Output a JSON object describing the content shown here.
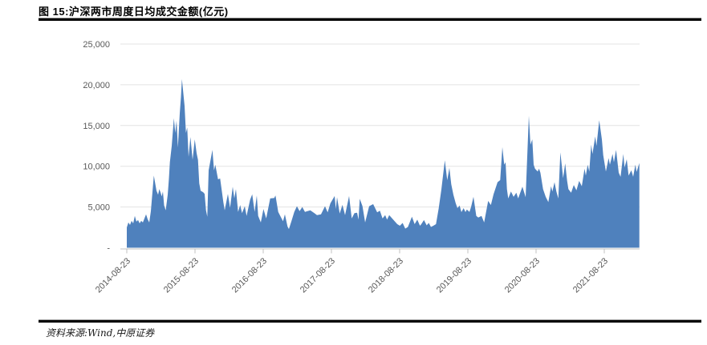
{
  "figure": {
    "title": "图 15:沪深两市周度日均成交金额(亿元)",
    "source": "资料来源:Wind,中原证券"
  },
  "colors": {
    "area_fill": "#4F81BD",
    "grid": "#E3E3E3",
    "axis": "#C0C0C0",
    "tick_label": "#595959",
    "rule": "#000000"
  },
  "chart_data": {
    "type": "area",
    "title": "沪深两市周度日均成交金额(亿元)",
    "series_name": "周度日均成交金额",
    "unit": "亿元",
    "legend": false,
    "grid": true,
    "x_axis": {
      "unit": "years since 2014-08-23 (weekly data)",
      "range": [
        0,
        7.52
      ],
      "ticks": [
        {
          "pos": 0,
          "label": "2014-08-23"
        },
        {
          "pos": 1,
          "label": "2015-08-23"
        },
        {
          "pos": 2,
          "label": "2016-08-23"
        },
        {
          "pos": 3,
          "label": "2017-08-23"
        },
        {
          "pos": 4,
          "label": "2018-08-23"
        },
        {
          "pos": 5,
          "label": "2019-08-23"
        },
        {
          "pos": 6,
          "label": "2020-08-23"
        },
        {
          "pos": 7,
          "label": "2021-08-23"
        }
      ]
    },
    "y_axis": {
      "range": [
        0,
        25000
      ],
      "ticks": [
        {
          "value": 0,
          "label": "-"
        },
        {
          "value": 5000,
          "label": "5,000"
        },
        {
          "value": 10000,
          "label": "10,000"
        },
        {
          "value": 15000,
          "label": "15,000"
        },
        {
          "value": 20000,
          "label": "20,000"
        },
        {
          "value": 25000,
          "label": "25,000"
        }
      ]
    },
    "points": [
      [
        0,
        2500
      ],
      [
        0.024,
        3100
      ],
      [
        0.047,
        2800
      ],
      [
        0.071,
        3300
      ],
      [
        0.094,
        3000
      ],
      [
        0.118,
        3900
      ],
      [
        0.141,
        3200
      ],
      [
        0.165,
        3400
      ],
      [
        0.188,
        3000
      ],
      [
        0.212,
        3300
      ],
      [
        0.235,
        3100
      ],
      [
        0.259,
        3600
      ],
      [
        0.282,
        4100
      ],
      [
        0.306,
        3500
      ],
      [
        0.329,
        3100
      ],
      [
        0.353,
        4500
      ],
      [
        0.396,
        8850
      ],
      [
        0.435,
        7000
      ],
      [
        0.459,
        6500
      ],
      [
        0.476,
        7200
      ],
      [
        0.494,
        6800
      ],
      [
        0.512,
        6300
      ],
      [
        0.529,
        6900
      ],
      [
        0.547,
        5200
      ],
      [
        0.571,
        4600
      ],
      [
        0.6,
        6500
      ],
      [
        0.618,
        8500
      ],
      [
        0.632,
        10500
      ],
      [
        0.659,
        12500
      ],
      [
        0.691,
        15900
      ],
      [
        0.709,
        14100
      ],
      [
        0.729,
        15600
      ],
      [
        0.749,
        12300
      ],
      [
        0.776,
        16500
      ],
      [
        0.794,
        18500
      ],
      [
        0.808,
        20700
      ],
      [
        0.847,
        17400
      ],
      [
        0.867,
        14100
      ],
      [
        0.886,
        14750
      ],
      [
        0.906,
        11150
      ],
      [
        0.933,
        13600
      ],
      [
        0.965,
        10800
      ],
      [
        0.996,
        13300
      ],
      [
        1.024,
        11600
      ],
      [
        1.044,
        10800
      ],
      [
        1.062,
        7900
      ],
      [
        1.082,
        7000
      ],
      [
        1.121,
        6800
      ],
      [
        1.141,
        6600
      ],
      [
        1.161,
        4600
      ],
      [
        1.18,
        3800
      ],
      [
        1.2,
        9500
      ],
      [
        1.255,
        12000
      ],
      [
        1.279,
        9500
      ],
      [
        1.298,
        10200
      ],
      [
        1.338,
        8400
      ],
      [
        1.368,
        8500
      ],
      [
        1.415,
        5600
      ],
      [
        1.435,
        4600
      ],
      [
        1.482,
        6600
      ],
      [
        1.514,
        4900
      ],
      [
        1.553,
        7500
      ],
      [
        1.576,
        6050
      ],
      [
        1.6,
        7200
      ],
      [
        1.632,
        4400
      ],
      [
        1.662,
        5250
      ],
      [
        1.69,
        4250
      ],
      [
        1.729,
        5100
      ],
      [
        1.756,
        3900
      ],
      [
        1.808,
        5900
      ],
      [
        1.839,
        6550
      ],
      [
        1.874,
        4400
      ],
      [
        1.906,
        6400
      ],
      [
        1.926,
        3900
      ],
      [
        1.965,
        3100
      ],
      [
        2.004,
        4750
      ],
      [
        2.043,
        3600
      ],
      [
        2.102,
        6050
      ],
      [
        2.161,
        6100
      ],
      [
        2.18,
        6400
      ],
      [
        2.22,
        4400
      ],
      [
        2.259,
        3750
      ],
      [
        2.291,
        3250
      ],
      [
        2.318,
        4100
      ],
      [
        2.356,
        2600
      ],
      [
        2.376,
        2300
      ],
      [
        2.415,
        3300
      ],
      [
        2.455,
        4400
      ],
      [
        2.494,
        5100
      ],
      [
        2.533,
        4500
      ],
      [
        2.573,
        5000
      ],
      [
        2.612,
        4400
      ],
      [
        2.691,
        4600
      ],
      [
        2.749,
        4250
      ],
      [
        2.788,
        4000
      ],
      [
        2.847,
        4100
      ],
      [
        2.906,
        5100
      ],
      [
        2.945,
        4350
      ],
      [
        2.985,
        5450
      ],
      [
        3.047,
        6350
      ],
      [
        3.065,
        4750
      ],
      [
        3.082,
        6200
      ],
      [
        3.121,
        4200
      ],
      [
        3.161,
        5270
      ],
      [
        3.2,
        4000
      ],
      [
        3.259,
        6350
      ],
      [
        3.298,
        3600
      ],
      [
        3.338,
        4250
      ],
      [
        3.376,
        4300
      ],
      [
        3.396,
        3450
      ],
      [
        3.415,
        6000
      ],
      [
        3.455,
        5100
      ],
      [
        3.494,
        3100
      ],
      [
        3.553,
        5100
      ],
      [
        3.612,
        5350
      ],
      [
        3.671,
        4350
      ],
      [
        3.71,
        4550
      ],
      [
        3.749,
        3600
      ],
      [
        3.788,
        4000
      ],
      [
        3.815,
        3450
      ],
      [
        3.847,
        4000
      ],
      [
        3.906,
        3450
      ],
      [
        3.965,
        2900
      ],
      [
        4.004,
        2700
      ],
      [
        4.043,
        3050
      ],
      [
        4.082,
        2350
      ],
      [
        4.121,
        2550
      ],
      [
        4.18,
        3800
      ],
      [
        4.22,
        2900
      ],
      [
        4.259,
        3450
      ],
      [
        4.298,
        2700
      ],
      [
        4.318,
        2900
      ],
      [
        4.357,
        3400
      ],
      [
        4.396,
        2750
      ],
      [
        4.427,
        3050
      ],
      [
        4.459,
        2550
      ],
      [
        4.494,
        2700
      ],
      [
        4.533,
        2900
      ],
      [
        4.573,
        4850
      ],
      [
        4.612,
        7150
      ],
      [
        4.662,
        10740
      ],
      [
        4.698,
        8290
      ],
      [
        4.729,
        9800
      ],
      [
        4.757,
        7800
      ],
      [
        4.788,
        6490
      ],
      [
        4.82,
        5510
      ],
      [
        4.847,
        4860
      ],
      [
        4.879,
        5180
      ],
      [
        4.906,
        4370
      ],
      [
        4.938,
        4860
      ],
      [
        4.965,
        4370
      ],
      [
        4.985,
        4690
      ],
      [
        5.024,
        4400
      ],
      [
        5.047,
        5000
      ],
      [
        5.082,
        6250
      ],
      [
        5.124,
        3900
      ],
      [
        5.153,
        3700
      ],
      [
        5.2,
        3900
      ],
      [
        5.239,
        3100
      ],
      [
        5.298,
        5750
      ],
      [
        5.338,
        5250
      ],
      [
        5.376,
        6550
      ],
      [
        5.435,
        8050
      ],
      [
        5.474,
        8300
      ],
      [
        5.506,
        12350
      ],
      [
        5.533,
        10200
      ],
      [
        5.553,
        10500
      ],
      [
        5.573,
        7200
      ],
      [
        5.592,
        6050
      ],
      [
        5.632,
        6900
      ],
      [
        5.671,
        6250
      ],
      [
        5.71,
        6750
      ],
      [
        5.738,
        6050
      ],
      [
        5.8,
        7500
      ],
      [
        5.847,
        6200
      ],
      [
        5.871,
        11200
      ],
      [
        5.894,
        16200
      ],
      [
        5.918,
        12650
      ],
      [
        5.945,
        13300
      ],
      [
        5.965,
        10200
      ],
      [
        5.985,
        9700
      ],
      [
        6.024,
        9350
      ],
      [
        6.044,
        9700
      ],
      [
        6.063,
        9200
      ],
      [
        6.102,
        7200
      ],
      [
        6.141,
        6250
      ],
      [
        6.18,
        5600
      ],
      [
        6.22,
        7550
      ],
      [
        6.239,
        6900
      ],
      [
        6.271,
        8050
      ],
      [
        6.298,
        6900
      ],
      [
        6.326,
        6050
      ],
      [
        6.357,
        11700
      ],
      [
        6.396,
        8550
      ],
      [
        6.427,
        10350
      ],
      [
        6.455,
        8200
      ],
      [
        6.474,
        7200
      ],
      [
        6.514,
        6750
      ],
      [
        6.553,
        7700
      ],
      [
        6.592,
        7050
      ],
      [
        6.632,
        8200
      ],
      [
        6.671,
        7550
      ],
      [
        6.71,
        9700
      ],
      [
        6.729,
        8850
      ],
      [
        6.757,
        10200
      ],
      [
        6.78,
        9350
      ],
      [
        6.808,
        12650
      ],
      [
        6.827,
        11500
      ],
      [
        6.867,
        13650
      ],
      [
        6.886,
        12500
      ],
      [
        6.926,
        15650
      ],
      [
        6.965,
        13300
      ],
      [
        6.985,
        11350
      ],
      [
        7.024,
        9350
      ],
      [
        7.063,
        11000
      ],
      [
        7.082,
        10200
      ],
      [
        7.121,
        11500
      ],
      [
        7.141,
        10500
      ],
      [
        7.173,
        12000
      ],
      [
        7.212,
        9200
      ],
      [
        7.239,
        8700
      ],
      [
        7.279,
        11500
      ],
      [
        7.298,
        9850
      ],
      [
        7.329,
        10850
      ],
      [
        7.357,
        8850
      ],
      [
        7.396,
        9500
      ],
      [
        7.424,
        8700
      ],
      [
        7.455,
        10200
      ],
      [
        7.474,
        9300
      ],
      [
        7.514,
        10400
      ]
    ]
  }
}
